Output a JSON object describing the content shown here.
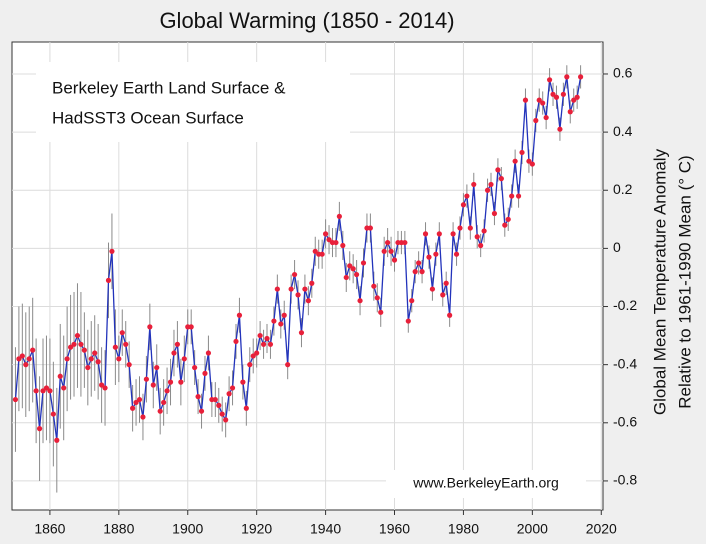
{
  "chart_data": {
    "type": "line",
    "title": "Global Warming (1850 - 2014)",
    "annotations": [
      "Berkeley Earth Land Surface &",
      "HadSST3 Ocean Surface",
      "www.BerkeleyEarth.org"
    ],
    "ylabel": [
      "Global Mean Temperature Anomaly",
      "Relative to 1961-1990 Mean (° C)"
    ],
    "x": [
      1850,
      1851,
      1852,
      1853,
      1854,
      1855,
      1856,
      1857,
      1858,
      1859,
      1860,
      1861,
      1862,
      1863,
      1864,
      1865,
      1866,
      1867,
      1868,
      1869,
      1870,
      1871,
      1872,
      1873,
      1874,
      1875,
      1876,
      1877,
      1878,
      1879,
      1880,
      1881,
      1882,
      1883,
      1884,
      1885,
      1886,
      1887,
      1888,
      1889,
      1890,
      1891,
      1892,
      1893,
      1894,
      1895,
      1896,
      1897,
      1898,
      1899,
      1900,
      1901,
      1902,
      1903,
      1904,
      1905,
      1906,
      1907,
      1908,
      1909,
      1910,
      1911,
      1912,
      1913,
      1914,
      1915,
      1916,
      1917,
      1918,
      1919,
      1920,
      1921,
      1922,
      1923,
      1924,
      1925,
      1926,
      1927,
      1928,
      1929,
      1930,
      1931,
      1932,
      1933,
      1934,
      1935,
      1936,
      1937,
      1938,
      1939,
      1940,
      1941,
      1942,
      1943,
      1944,
      1945,
      1946,
      1947,
      1948,
      1949,
      1950,
      1951,
      1952,
      1953,
      1954,
      1955,
      1956,
      1957,
      1958,
      1959,
      1960,
      1961,
      1962,
      1963,
      1964,
      1965,
      1966,
      1967,
      1968,
      1969,
      1970,
      1971,
      1972,
      1973,
      1974,
      1975,
      1976,
      1977,
      1978,
      1979,
      1980,
      1981,
      1982,
      1983,
      1984,
      1985,
      1986,
      1987,
      1988,
      1989,
      1990,
      1991,
      1992,
      1993,
      1994,
      1995,
      1996,
      1997,
      1998,
      1999,
      2000,
      2001,
      2002,
      2003,
      2004,
      2005,
      2006,
      2007,
      2008,
      2009,
      2010,
      2011,
      2012,
      2013,
      2014
    ],
    "series": [
      {
        "color": "#2233bb",
        "marker_color": "#e8203a",
        "error_color": "#8a8a8a",
        "values": [
          -0.52,
          -0.38,
          -0.37,
          -0.4,
          -0.38,
          -0.35,
          -0.49,
          -0.62,
          -0.49,
          -0.48,
          -0.49,
          -0.57,
          -0.66,
          -0.44,
          -0.48,
          -0.38,
          -0.34,
          -0.33,
          -0.3,
          -0.33,
          -0.35,
          -0.41,
          -0.38,
          -0.36,
          -0.39,
          -0.47,
          -0.48,
          -0.11,
          -0.01,
          -0.34,
          -0.38,
          -0.29,
          -0.33,
          -0.4,
          -0.55,
          -0.53,
          -0.52,
          -0.58,
          -0.45,
          -0.27,
          -0.47,
          -0.41,
          -0.56,
          -0.53,
          -0.49,
          -0.46,
          -0.36,
          -0.33,
          -0.46,
          -0.38,
          -0.27,
          -0.27,
          -0.41,
          -0.51,
          -0.56,
          -0.43,
          -0.36,
          -0.52,
          -0.52,
          -0.54,
          -0.57,
          -0.59,
          -0.5,
          -0.48,
          -0.32,
          -0.23,
          -0.46,
          -0.55,
          -0.4,
          -0.37,
          -0.36,
          -0.3,
          -0.33,
          -0.31,
          -0.33,
          -0.25,
          -0.14,
          -0.26,
          -0.23,
          -0.4,
          -0.14,
          -0.09,
          -0.16,
          -0.29,
          -0.14,
          -0.18,
          -0.12,
          -0.01,
          -0.02,
          -0.02,
          0.05,
          0.03,
          0.02,
          0.02,
          0.11,
          0.01,
          -0.1,
          -0.06,
          -0.07,
          -0.09,
          -0.18,
          -0.05,
          0.07,
          0.07,
          -0.13,
          -0.17,
          -0.22,
          -0.01,
          0.02,
          -0.01,
          -0.04,
          0.02,
          0.02,
          0.02,
          -0.25,
          -0.18,
          -0.08,
          -0.05,
          -0.08,
          0.05,
          -0.03,
          -0.14,
          -0.02,
          0.05,
          -0.16,
          -0.12,
          -0.23,
          0.05,
          -0.02,
          0.07,
          0.15,
          0.18,
          0.07,
          0.22,
          0.04,
          0.01,
          0.06,
          0.2,
          0.22,
          0.12,
          0.27,
          0.24,
          0.08,
          0.1,
          0.18,
          0.3,
          0.18,
          0.33,
          0.51,
          0.3,
          0.29,
          0.44,
          0.51,
          0.5,
          0.45,
          0.58,
          0.53,
          0.52,
          0.41,
          0.53,
          0.59,
          0.47,
          0.51,
          0.52,
          0.59
        ],
        "errors": [
          0.18,
          0.18,
          0.18,
          0.18,
          0.18,
          0.18,
          0.18,
          0.18,
          0.18,
          0.18,
          0.18,
          0.18,
          0.18,
          0.18,
          0.18,
          0.18,
          0.18,
          0.18,
          0.18,
          0.18,
          0.13,
          0.13,
          0.13,
          0.13,
          0.13,
          0.13,
          0.13,
          0.13,
          0.13,
          0.13,
          0.08,
          0.08,
          0.08,
          0.08,
          0.08,
          0.08,
          0.08,
          0.08,
          0.08,
          0.08,
          0.08,
          0.08,
          0.08,
          0.08,
          0.08,
          0.08,
          0.08,
          0.08,
          0.08,
          0.08,
          0.06,
          0.06,
          0.06,
          0.06,
          0.06,
          0.06,
          0.06,
          0.06,
          0.06,
          0.06,
          0.06,
          0.06,
          0.06,
          0.06,
          0.06,
          0.06,
          0.06,
          0.06,
          0.06,
          0.06,
          0.05,
          0.05,
          0.05,
          0.05,
          0.05,
          0.05,
          0.05,
          0.05,
          0.05,
          0.05,
          0.05,
          0.05,
          0.05,
          0.05,
          0.05,
          0.05,
          0.05,
          0.05,
          0.05,
          0.05,
          0.05,
          0.05,
          0.05,
          0.05,
          0.05,
          0.05,
          0.05,
          0.05,
          0.05,
          0.05,
          0.05,
          0.05,
          0.05,
          0.05,
          0.05,
          0.05,
          0.05,
          0.05,
          0.05,
          0.05,
          0.04,
          0.04,
          0.04,
          0.04,
          0.04,
          0.04,
          0.04,
          0.04,
          0.04,
          0.04,
          0.04,
          0.04,
          0.04,
          0.04,
          0.04,
          0.04,
          0.04,
          0.04,
          0.04,
          0.04,
          0.04,
          0.04,
          0.04,
          0.04,
          0.04,
          0.04,
          0.04,
          0.04,
          0.04,
          0.04,
          0.04,
          0.04,
          0.04,
          0.04,
          0.04,
          0.04,
          0.04,
          0.04,
          0.04,
          0.04,
          0.04,
          0.04,
          0.04,
          0.04,
          0.04,
          0.04,
          0.04,
          0.04,
          0.04,
          0.04,
          0.04,
          0.04,
          0.04,
          0.04,
          0.04
        ]
      }
    ],
    "xlim": [
      1849,
      2020.5
    ],
    "xticks": [
      1860,
      1880,
      1900,
      1920,
      1940,
      1960,
      1980,
      2000,
      2020
    ],
    "ylim": [
      -0.9,
      0.71
    ],
    "yticks": [
      -0.8,
      -0.6,
      -0.4,
      -0.2,
      0,
      0.2,
      0.4,
      0.6
    ],
    "grid": true
  }
}
